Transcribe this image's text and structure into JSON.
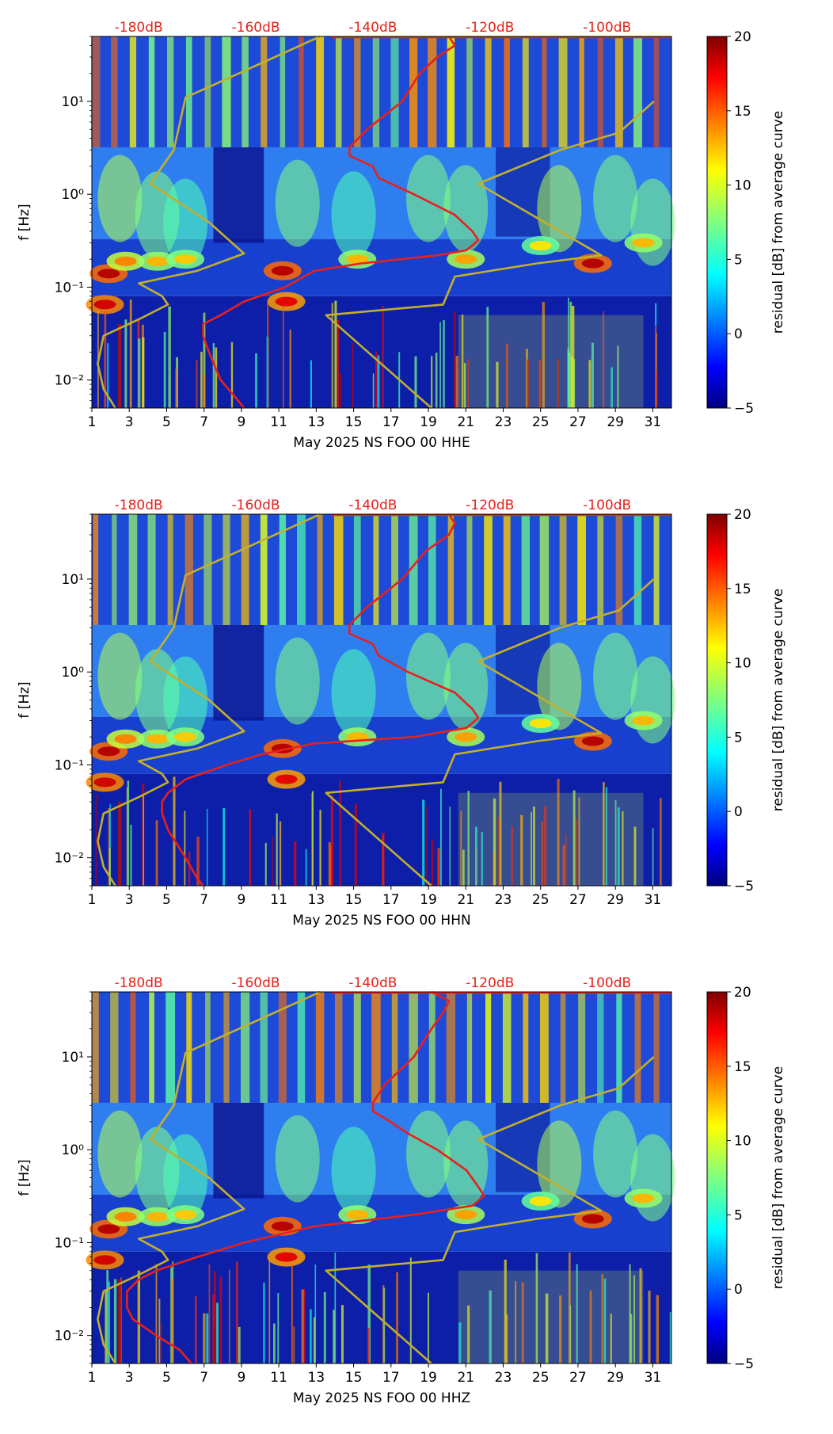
{
  "chart_data": [
    {
      "type": "heatmap",
      "subtype": "ppsd-spectrogram-residual",
      "xlabel": "May 2025 NS FOO 00 HHE",
      "ylabel": "f [Hz]",
      "colorbar_label": "residual [dB] from average curve",
      "colorbar_ticks": [
        "20",
        "15",
        "10",
        "5",
        "0",
        "−5"
      ],
      "colorbar_range": [
        -5,
        20
      ],
      "x_ticks": [
        "1",
        "3",
        "5",
        "7",
        "9",
        "11",
        "13",
        "15",
        "17",
        "19",
        "21",
        "23",
        "25",
        "27",
        "29",
        "31"
      ],
      "xlim": [
        1,
        32
      ],
      "y_ticks": [
        "10¹",
        "10⁰",
        "10⁻¹",
        "10⁻²"
      ],
      "ylim_hz": [
        0.005,
        50
      ],
      "top_axis_labels": [
        "-180dB",
        "-160dB",
        "-140dB",
        "-120dB",
        "-100dB"
      ],
      "top_axis_db": [
        -180,
        -160,
        -140,
        -120,
        -100
      ],
      "db_range": [
        -188,
        -89
      ],
      "noise_model_low": [
        [
          50,
          -149
        ],
        [
          11,
          -172
        ],
        [
          3,
          -174
        ],
        [
          1.3,
          -178
        ],
        [
          0.5,
          -168
        ],
        [
          0.23,
          -162
        ],
        [
          0.15,
          -170
        ],
        [
          0.11,
          -180
        ],
        [
          0.08,
          -176
        ],
        [
          0.065,
          -175
        ],
        [
          0.045,
          -180
        ],
        [
          0.03,
          -186
        ],
        [
          0.015,
          -187
        ],
        [
          0.008,
          -186
        ],
        [
          0.005,
          -184
        ]
      ],
      "noise_model_high": [
        [
          10,
          -92
        ],
        [
          4.6,
          -98
        ],
        [
          3,
          -108
        ],
        [
          1.3,
          -122
        ],
        [
          0.22,
          -101
        ],
        [
          0.18,
          -112
        ],
        [
          0.13,
          -126
        ],
        [
          0.065,
          -128
        ],
        [
          0.05,
          -148
        ],
        [
          0.005,
          -130
        ]
      ],
      "median_psd_curve": [
        [
          50,
          -127
        ],
        [
          40,
          -126
        ],
        [
          30,
          -129
        ],
        [
          20,
          -132
        ],
        [
          10,
          -135
        ],
        [
          5,
          -141
        ],
        [
          3.2,
          -144
        ],
        [
          2.6,
          -144
        ],
        [
          2,
          -140
        ],
        [
          1.5,
          -139
        ],
        [
          1.0,
          -133
        ],
        [
          0.6,
          -126
        ],
        [
          0.4,
          -123
        ],
        [
          0.32,
          -122
        ],
        [
          0.25,
          -124
        ],
        [
          0.22,
          -129
        ],
        [
          0.18,
          -142
        ],
        [
          0.15,
          -150
        ],
        [
          0.1,
          -155
        ],
        [
          0.07,
          -162
        ],
        [
          0.05,
          -166
        ],
        [
          0.04,
          -169
        ],
        [
          0.03,
          -169
        ],
        [
          0.02,
          -168
        ],
        [
          0.01,
          -166
        ],
        [
          0.006,
          -163
        ],
        [
          0.005,
          -162
        ]
      ]
    },
    {
      "type": "heatmap",
      "subtype": "ppsd-spectrogram-residual",
      "xlabel": "May 2025 NS FOO 00 HHN",
      "ylabel": "f [Hz]",
      "colorbar_label": "residual [dB] from average curve",
      "colorbar_ticks": [
        "20",
        "15",
        "10",
        "5",
        "0",
        "−5"
      ],
      "colorbar_range": [
        -5,
        20
      ],
      "x_ticks": [
        "1",
        "3",
        "5",
        "7",
        "9",
        "11",
        "13",
        "15",
        "17",
        "19",
        "21",
        "23",
        "25",
        "27",
        "29",
        "31"
      ],
      "xlim": [
        1,
        32
      ],
      "y_ticks": [
        "10¹",
        "10⁰",
        "10⁻¹",
        "10⁻²"
      ],
      "ylim_hz": [
        0.005,
        50
      ],
      "top_axis_labels": [
        "-180dB",
        "-160dB",
        "-140dB",
        "-120dB",
        "-100dB"
      ],
      "top_axis_db": [
        -180,
        -160,
        -140,
        -120,
        -100
      ],
      "db_range": [
        -188,
        -89
      ],
      "noise_model_low": [
        [
          50,
          -149
        ],
        [
          11,
          -172
        ],
        [
          3,
          -174
        ],
        [
          1.3,
          -178
        ],
        [
          0.5,
          -168
        ],
        [
          0.23,
          -162
        ],
        [
          0.15,
          -170
        ],
        [
          0.11,
          -180
        ],
        [
          0.08,
          -176
        ],
        [
          0.065,
          -175
        ],
        [
          0.045,
          -180
        ],
        [
          0.03,
          -186
        ],
        [
          0.015,
          -187
        ],
        [
          0.008,
          -186
        ],
        [
          0.005,
          -184
        ]
      ],
      "noise_model_high": [
        [
          10,
          -92
        ],
        [
          4.6,
          -98
        ],
        [
          3,
          -108
        ],
        [
          1.3,
          -122
        ],
        [
          0.22,
          -101
        ],
        [
          0.18,
          -112
        ],
        [
          0.13,
          -126
        ],
        [
          0.065,
          -128
        ],
        [
          0.05,
          -148
        ],
        [
          0.005,
          -130
        ]
      ],
      "median_psd_curve": [
        [
          50,
          -127
        ],
        [
          40,
          -126
        ],
        [
          30,
          -127
        ],
        [
          20,
          -131
        ],
        [
          10,
          -135
        ],
        [
          5,
          -141
        ],
        [
          3.2,
          -144
        ],
        [
          2.6,
          -144
        ],
        [
          2,
          -140
        ],
        [
          1.5,
          -139
        ],
        [
          1.0,
          -134
        ],
        [
          0.6,
          -126
        ],
        [
          0.4,
          -123
        ],
        [
          0.32,
          -122
        ],
        [
          0.25,
          -124
        ],
        [
          0.2,
          -133
        ],
        [
          0.17,
          -150
        ],
        [
          0.13,
          -159
        ],
        [
          0.1,
          -165
        ],
        [
          0.07,
          -172
        ],
        [
          0.05,
          -175
        ],
        [
          0.04,
          -176
        ],
        [
          0.03,
          -176
        ],
        [
          0.02,
          -175
        ],
        [
          0.01,
          -172
        ],
        [
          0.006,
          -170
        ],
        [
          0.005,
          -169
        ]
      ]
    },
    {
      "type": "heatmap",
      "subtype": "ppsd-spectrogram-residual",
      "xlabel": "May 2025 NS FOO 00 HHZ",
      "ylabel": "f [Hz]",
      "colorbar_label": "residual [dB] from average curve",
      "colorbar_ticks": [
        "20",
        "15",
        "10",
        "5",
        "0",
        "−5"
      ],
      "colorbar_range": [
        -5,
        20
      ],
      "x_ticks": [
        "1",
        "3",
        "5",
        "7",
        "9",
        "11",
        "13",
        "15",
        "17",
        "19",
        "21",
        "23",
        "25",
        "27",
        "29",
        "31"
      ],
      "xlim": [
        1,
        32
      ],
      "y_ticks": [
        "10¹",
        "10⁰",
        "10⁻¹",
        "10⁻²"
      ],
      "ylim_hz": [
        0.005,
        50
      ],
      "top_axis_labels": [
        "-180dB",
        "-160dB",
        "-140dB",
        "-120dB",
        "-100dB"
      ],
      "top_axis_db": [
        -180,
        -160,
        -140,
        -120,
        -100
      ],
      "db_range": [
        -188,
        -89
      ],
      "noise_model_low": [
        [
          50,
          -149
        ],
        [
          11,
          -172
        ],
        [
          3,
          -174
        ],
        [
          1.3,
          -178
        ],
        [
          0.5,
          -168
        ],
        [
          0.23,
          -162
        ],
        [
          0.15,
          -170
        ],
        [
          0.11,
          -180
        ],
        [
          0.08,
          -176
        ],
        [
          0.065,
          -175
        ],
        [
          0.045,
          -180
        ],
        [
          0.03,
          -186
        ],
        [
          0.015,
          -187
        ],
        [
          0.008,
          -186
        ],
        [
          0.005,
          -184
        ]
      ],
      "noise_model_high": [
        [
          10,
          -92
        ],
        [
          4.6,
          -98
        ],
        [
          3,
          -108
        ],
        [
          1.3,
          -122
        ],
        [
          0.22,
          -101
        ],
        [
          0.18,
          -112
        ],
        [
          0.13,
          -126
        ],
        [
          0.065,
          -128
        ],
        [
          0.05,
          -148
        ],
        [
          0.005,
          -130
        ]
      ],
      "median_psd_curve": [
        [
          50,
          -130
        ],
        [
          40,
          -127
        ],
        [
          30,
          -128
        ],
        [
          20,
          -130
        ],
        [
          10,
          -133
        ],
        [
          5,
          -138
        ],
        [
          3.2,
          -140
        ],
        [
          2.6,
          -140
        ],
        [
          2,
          -137
        ],
        [
          1.5,
          -134
        ],
        [
          1.0,
          -129
        ],
        [
          0.6,
          -124
        ],
        [
          0.4,
          -122
        ],
        [
          0.32,
          -121
        ],
        [
          0.25,
          -123
        ],
        [
          0.2,
          -133
        ],
        [
          0.15,
          -150
        ],
        [
          0.1,
          -162
        ],
        [
          0.07,
          -170
        ],
        [
          0.05,
          -177
        ],
        [
          0.04,
          -180
        ],
        [
          0.03,
          -182
        ],
        [
          0.02,
          -182
        ],
        [
          0.015,
          -181
        ],
        [
          0.01,
          -177
        ],
        [
          0.007,
          -173
        ],
        [
          0.005,
          -171
        ]
      ]
    }
  ],
  "colors": {
    "median_curve": "#e8201a",
    "noise_models": "#c2b02c",
    "top_labels": "#e8201a"
  }
}
